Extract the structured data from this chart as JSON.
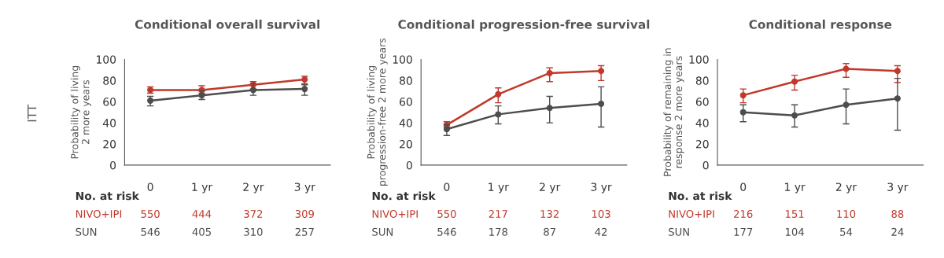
{
  "chart_data": [
    {
      "type": "line",
      "title": "Conditional overall survival",
      "ylabel": "Probability of living\n2 more years",
      "categories": [
        "0",
        "1 yr",
        "2 yr",
        "3 yr"
      ],
      "ylim": [
        0,
        100
      ],
      "yticks": [
        0,
        20,
        40,
        60,
        80,
        100
      ],
      "marker": "circle",
      "grid": false,
      "legend": false,
      "series": [
        {
          "name": "NIVO+IPI",
          "color": "#c0392b",
          "values": [
            71,
            71,
            76,
            81
          ],
          "errors": [
            [
              68,
              74
            ],
            [
              68,
              75
            ],
            [
              72,
              79
            ],
            [
              77,
              84
            ]
          ]
        },
        {
          "name": "SUN",
          "color": "#4d4d4d",
          "values": [
            61,
            66,
            71,
            72
          ],
          "errors": [
            [
              56,
              65
            ],
            [
              62,
              70
            ],
            [
              66,
              77
            ],
            [
              66,
              76
            ]
          ]
        }
      ],
      "annotations": [
        "No. at risk",
        "550",
        "444",
        "372",
        "309",
        "546",
        "405",
        "310",
        "257",
        "ITT"
      ]
    },
    {
      "type": "line",
      "title": "Conditional progression-free survival",
      "ylabel": "Probability of living\nprogression-free 2 more years",
      "categories": [
        "0",
        "1 yr",
        "2 yr",
        "3 yr"
      ],
      "ylim": [
        0,
        100
      ],
      "yticks": [
        0,
        20,
        40,
        60,
        80,
        100
      ],
      "marker": "circle",
      "grid": false,
      "legend": false,
      "series": [
        {
          "name": "NIVO+IPI",
          "color": "#c0392b",
          "values": [
            38,
            67,
            87,
            89
          ],
          "errors": [
            [
              36,
              41
            ],
            [
              59,
              73
            ],
            [
              79,
              92
            ],
            [
              80,
              94
            ]
          ]
        },
        {
          "name": "SUN",
          "color": "#4d4d4d",
          "values": [
            34,
            48,
            54,
            58
          ],
          "errors": [
            [
              28,
              38
            ],
            [
              39,
              56
            ],
            [
              40,
              65
            ],
            [
              36,
              74
            ]
          ]
        }
      ],
      "annotations": [
        "No. at risk",
        "550",
        "217",
        "132",
        "103",
        "546",
        "178",
        "87",
        "42"
      ]
    },
    {
      "type": "line",
      "title": "Conditional response",
      "ylabel": "Probability of remaining in\nresponse 2 more years",
      "categories": [
        "0",
        "1 yr",
        "2 yr",
        "3 yr"
      ],
      "ylim": [
        0,
        100
      ],
      "yticks": [
        0,
        20,
        40,
        60,
        80,
        100
      ],
      "marker": "circle",
      "grid": false,
      "legend": false,
      "series": [
        {
          "name": "NIVO+IPI",
          "color": "#c0392b",
          "values": [
            66,
            79,
            91,
            89
          ],
          "errors": [
            [
              59,
              72
            ],
            [
              71,
              85
            ],
            [
              83,
              96
            ],
            [
              78,
              94
            ]
          ]
        },
        {
          "name": "SUN",
          "color": "#4d4d4d",
          "values": [
            50,
            47,
            57,
            63
          ],
          "errors": [
            [
              41,
              57
            ],
            [
              36,
              57
            ],
            [
              39,
              72
            ],
            [
              33,
              82
            ]
          ]
        }
      ],
      "annotations": [
        "No. at risk",
        "216",
        "151",
        "110",
        "88",
        "177",
        "104",
        "54",
        "24"
      ]
    }
  ]
}
